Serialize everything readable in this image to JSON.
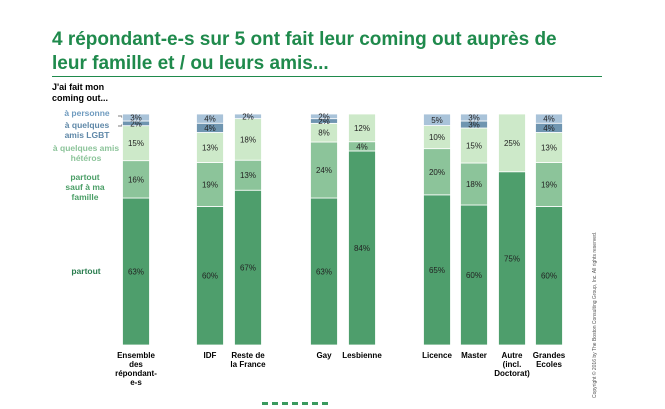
{
  "title": "4 répondant-e-s sur 5 ont fait leur coming out auprès de leur famille et / ou leurs amis...",
  "copyright": "Copyright © 2016 by The Boston Consulting Group, Inc. All rights reserved.",
  "chart_data": {
    "type": "bar",
    "stacked": true,
    "legend_heading": "J'ai fait mon coming out...",
    "categories": [
      "Ensemble des répondant-e-s",
      "IDF",
      "Reste de la France",
      "Gay",
      "Lesbienne",
      "Licence",
      "Master",
      "Autre (incl. Doctorat)",
      "Grandes Ecoles"
    ],
    "category_lines": [
      [
        "Ensemble",
        "des",
        "répondant-",
        "e-s"
      ],
      [
        "IDF"
      ],
      [
        "Reste de",
        "la France"
      ],
      [
        "Gay"
      ],
      [
        "Lesbienne"
      ],
      [
        "Licence"
      ],
      [
        "Master"
      ],
      [
        "Autre",
        "(incl.",
        "Doctorat)"
      ],
      [
        "Grandes",
        "Ecoles"
      ]
    ],
    "ylim": [
      0,
      100
    ],
    "series": [
      {
        "name": "partout",
        "color": "#4e9e6c",
        "text_color": "#2a7d4f",
        "values": [
          63,
          60,
          67,
          63,
          84,
          65,
          60,
          75,
          60
        ]
      },
      {
        "name": "partout sauf à ma famille",
        "color": "#8cc49a",
        "text_color": "#4a9e66",
        "values": [
          16,
          19,
          13,
          24,
          4,
          20,
          18,
          null,
          19
        ]
      },
      {
        "name": "à quelques amis hétéros",
        "color": "#cde9c9",
        "text_color": "#8cc49a",
        "values": [
          15,
          13,
          18,
          8,
          12,
          10,
          15,
          25,
          13
        ]
      },
      {
        "name": "à quelques amis LGBT",
        "color": "#6f95b0",
        "text_color": "#5f88a8",
        "values": [
          2,
          4,
          null,
          2,
          null,
          null,
          3,
          null,
          4
        ]
      },
      {
        "name": "à personne",
        "color": "#a9c3d9",
        "text_color": "#6f9bbf",
        "values": [
          3,
          4,
          2,
          2,
          null,
          5,
          3,
          null,
          4
        ]
      }
    ]
  }
}
